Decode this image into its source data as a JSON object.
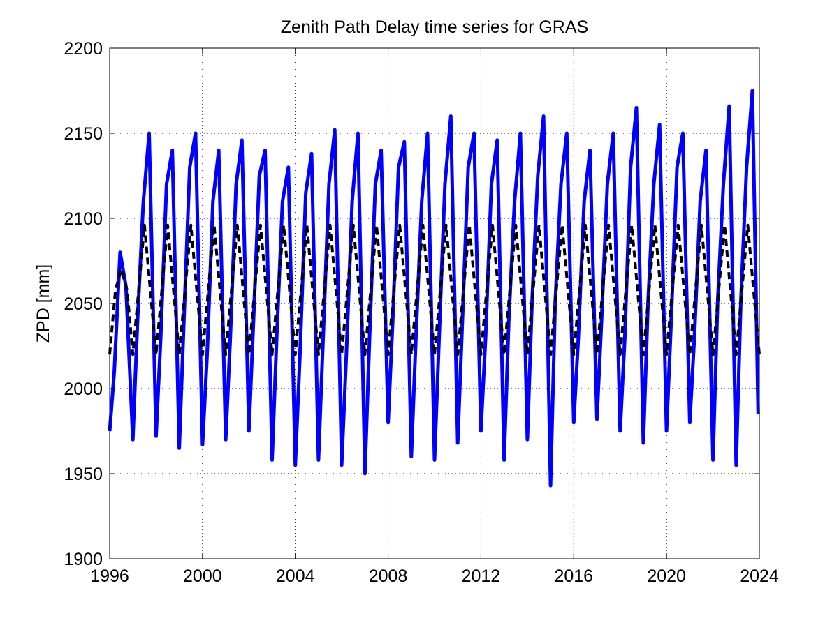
{
  "chart_data": {
    "type": "line",
    "title": "Zenith Path Delay time series for GRAS",
    "xlabel": "",
    "ylabel": "ZPD [mm]",
    "xlim": [
      1996,
      2024
    ],
    "ylim": [
      1900,
      2200
    ],
    "xticks": [
      "1996",
      "2000",
      "2004",
      "2008",
      "2012",
      "2016",
      "2020",
      "2024"
    ],
    "yticks": [
      "1900",
      "1950",
      "2000",
      "2050",
      "2100",
      "2150",
      "2200"
    ],
    "grid": true,
    "colors": {
      "observed": "#0000ff",
      "model": "#000000"
    },
    "series": [
      {
        "style": "solid",
        "color": "#0000ff",
        "x": [
          1996.0,
          1996.2,
          1996.45,
          1996.7,
          1997.0,
          1997.2,
          1997.45,
          1997.7,
          1998.0,
          1998.2,
          1998.45,
          1998.7,
          1999.0,
          1999.2,
          1999.45,
          1999.7,
          2000.0,
          2000.2,
          2000.45,
          2000.7,
          2001.0,
          2001.2,
          2001.45,
          2001.7,
          2002.0,
          2002.2,
          2002.45,
          2002.7,
          2003.0,
          2003.2,
          2003.45,
          2003.7,
          2004.0,
          2004.2,
          2004.45,
          2004.7,
          2005.0,
          2005.2,
          2005.45,
          2005.7,
          2006.0,
          2006.2,
          2006.45,
          2006.7,
          2007.0,
          2007.2,
          2007.45,
          2007.7,
          2008.0,
          2008.2,
          2008.45,
          2008.7,
          2009.0,
          2009.2,
          2009.45,
          2009.7,
          2010.0,
          2010.2,
          2010.45,
          2010.7,
          2011.0,
          2011.2,
          2011.45,
          2011.7,
          2012.0,
          2012.2,
          2012.45,
          2012.7,
          2013.0,
          2013.2,
          2013.45,
          2013.7,
          2014.0,
          2014.2,
          2014.45,
          2014.7,
          2015.0,
          2015.2,
          2015.45,
          2015.7,
          2016.0,
          2016.2,
          2016.45,
          2016.7,
          2017.0,
          2017.2,
          2017.45,
          2017.7,
          2018.0,
          2018.2,
          2018.45,
          2018.7,
          2019.0,
          2019.2,
          2019.45,
          2019.7,
          2020.0,
          2020.2,
          2020.45,
          2020.7,
          2021.0,
          2021.2,
          2021.45,
          2021.7,
          2022.0,
          2022.2,
          2022.45,
          2022.7,
          2023.0,
          2023.2,
          2023.45,
          2023.7,
          2023.95
        ],
        "y": [
          1975,
          2010,
          2080,
          2060,
          1970,
          2040,
          2110,
          2150,
          1972,
          2030,
          2120,
          2140,
          1965,
          2040,
          2130,
          2150,
          1967,
          2020,
          2110,
          2140,
          1970,
          2030,
          2120,
          2146,
          1975,
          2040,
          2125,
          2140,
          1958,
          2030,
          2110,
          2130,
          1955,
          2020,
          2115,
          2138,
          1958,
          2030,
          2120,
          2152,
          1955,
          2020,
          2110,
          2150,
          1950,
          2030,
          2120,
          2140,
          1980,
          2040,
          2130,
          2145,
          1960,
          2030,
          2110,
          2150,
          1958,
          2030,
          2120,
          2160,
          1968,
          2040,
          2130,
          2150,
          1975,
          2030,
          2120,
          2146,
          1958,
          2040,
          2110,
          2150,
          1970,
          2050,
          2125,
          2160,
          1943,
          2050,
          2120,
          2150,
          1980,
          2030,
          2110,
          2140,
          1982,
          2040,
          2120,
          2150,
          1975,
          2030,
          2130,
          2165,
          1968,
          2050,
          2120,
          2155,
          1975,
          2040,
          2130,
          2150,
          1980,
          2030,
          2110,
          2140,
          1958,
          2050,
          2120,
          2166,
          1955,
          2050,
          2130,
          2175,
          1985
        ]
      },
      {
        "style": "dashed",
        "color": "#000000",
        "x": [
          1996.0,
          1996.25,
          1996.5,
          1996.75,
          1997.0,
          1997.25,
          1997.5,
          1997.75,
          1998.0,
          1998.25,
          1998.5,
          1998.75,
          1999.0,
          1999.25,
          1999.5,
          1999.75,
          2000.0,
          2000.25,
          2000.5,
          2000.75,
          2001.0,
          2001.25,
          2001.5,
          2001.75,
          2002.0,
          2002.25,
          2002.5,
          2002.75,
          2003.0,
          2003.25,
          2003.5,
          2003.75,
          2004.0,
          2004.25,
          2004.5,
          2004.75,
          2005.0,
          2005.25,
          2005.5,
          2005.75,
          2006.0,
          2006.25,
          2006.5,
          2006.75,
          2007.0,
          2007.25,
          2007.5,
          2007.75,
          2008.0,
          2008.25,
          2008.5,
          2008.75,
          2009.0,
          2009.25,
          2009.5,
          2009.75,
          2010.0,
          2010.25,
          2010.5,
          2010.75,
          2011.0,
          2011.25,
          2011.5,
          2011.75,
          2012.0,
          2012.25,
          2012.5,
          2012.75,
          2013.0,
          2013.25,
          2013.5,
          2013.75,
          2014.0,
          2014.25,
          2014.5,
          2014.75,
          2015.0,
          2015.25,
          2015.5,
          2015.75,
          2016.0,
          2016.25,
          2016.5,
          2016.75,
          2017.0,
          2017.25,
          2017.5,
          2017.75,
          2018.0,
          2018.25,
          2018.5,
          2018.75,
          2019.0,
          2019.25,
          2019.5,
          2019.75,
          2020.0,
          2020.25,
          2020.5,
          2020.75,
          2021.0,
          2021.25,
          2021.5,
          2021.75,
          2022.0,
          2022.25,
          2022.5,
          2022.75,
          2023.0,
          2023.25,
          2023.5,
          2023.75,
          2024.0
        ],
        "y": [
          2020,
          2058,
          2070,
          2058,
          2020,
          2058,
          2096,
          2058,
          2020,
          2058,
          2096,
          2058,
          2020,
          2058,
          2096,
          2058,
          2020,
          2058,
          2096,
          2058,
          2020,
          2058,
          2096,
          2058,
          2020,
          2058,
          2096,
          2058,
          2020,
          2058,
          2096,
          2058,
          2020,
          2058,
          2096,
          2058,
          2020,
          2058,
          2096,
          2058,
          2020,
          2058,
          2096,
          2058,
          2020,
          2058,
          2096,
          2058,
          2020,
          2058,
          2096,
          2058,
          2020,
          2058,
          2096,
          2058,
          2020,
          2058,
          2096,
          2058,
          2020,
          2058,
          2096,
          2058,
          2020,
          2058,
          2096,
          2058,
          2020,
          2058,
          2096,
          2058,
          2020,
          2058,
          2096,
          2058,
          2020,
          2058,
          2096,
          2058,
          2020,
          2058,
          2096,
          2058,
          2020,
          2058,
          2096,
          2058,
          2020,
          2058,
          2096,
          2058,
          2020,
          2058,
          2096,
          2058,
          2020,
          2058,
          2096,
          2058,
          2020,
          2058,
          2096,
          2058,
          2020,
          2058,
          2096,
          2058,
          2020,
          2058,
          2096,
          2058,
          2020
        ]
      }
    ]
  }
}
